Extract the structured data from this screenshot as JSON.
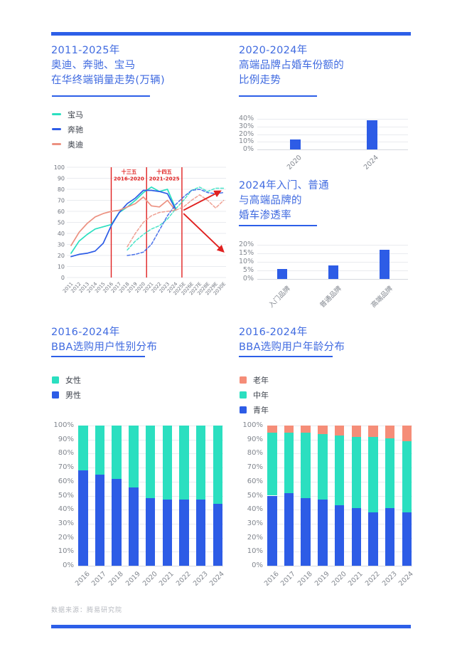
{
  "page": {
    "footer_text": "数据来源：腾易研究院",
    "accent_color": "#2D5FE8",
    "title_color": "#3F6AE0",
    "annotation_color": "#E02120",
    "axis_text_color": "#82878F",
    "grid_color": "#E9EBEF"
  },
  "chart_data": [
    {
      "id": "bba-sales-trend",
      "type": "line",
      "title_lines": [
        "2011-2025年",
        "奥迪、奔驰、宝马",
        "在华终端销量走势(万辆)"
      ],
      "title": "2011-2025年奥迪、奔驰、宝马在华终端销量走势(万辆)",
      "xlabel": "",
      "ylabel": "",
      "x_labels": [
        "2011",
        "2012",
        "2013",
        "2014",
        "2015",
        "2016",
        "2017",
        "2018",
        "2019",
        "2020",
        "2021",
        "2022",
        "2023",
        "2024",
        "2025E",
        "2026E",
        "2027E",
        "2028E",
        "2029E",
        "2030E"
      ],
      "ylim": [
        0,
        100
      ],
      "ytick_step": 10,
      "grid": true,
      "legend_position": "top-left",
      "legend": [
        {
          "label": "宝马",
          "color": "#2BDFC0"
        },
        {
          "label": "奔驰",
          "color": "#2D5CE6"
        },
        {
          "label": "奥迪",
          "color": "#EC9181"
        }
      ],
      "series": [
        {
          "name": "宝马",
          "style": "solid",
          "color": "#2BDFC0",
          "start_index": 0,
          "values": [
            22,
            33,
            39,
            44,
            46,
            48,
            59,
            64,
            70,
            77,
            82,
            78,
            80,
            63
          ]
        },
        {
          "name": "奔驰",
          "style": "solid",
          "color": "#2D5CE6",
          "start_index": 0,
          "values": [
            19,
            21,
            22,
            24,
            31,
            47,
            59,
            67,
            72,
            79,
            79,
            78,
            76,
            62
          ]
        },
        {
          "name": "奥迪",
          "style": "solid",
          "color": "#EC9181",
          "start_index": 0,
          "values": [
            29,
            41,
            49,
            55,
            58,
            60,
            61,
            64,
            67,
            73,
            65,
            64,
            70,
            61
          ]
        },
        {
          "name": "宝马",
          "style": "dashed",
          "color": "#2BDFC0",
          "start_index": 7,
          "values": [
            25,
            33,
            39,
            44,
            47,
            53,
            62,
            70,
            79,
            82,
            78,
            81,
            81
          ]
        },
        {
          "name": "奔驰",
          "style": "dashed",
          "color": "#2D5CE6",
          "start_index": 7,
          "values": [
            20,
            21,
            23,
            30,
            43,
            56,
            66,
            73,
            79,
            80,
            77,
            76,
            77
          ]
        },
        {
          "name": "奥迪",
          "style": "dashed",
          "color": "#EC9181",
          "start_index": 7,
          "values": [
            28,
            40,
            50,
            56,
            59,
            60,
            61,
            64,
            70,
            75,
            70,
            63,
            70
          ]
        }
      ],
      "annotations": [
        {
          "lines": [
            "十三五",
            "2016-2020"
          ],
          "x_index": 7.2,
          "color": "#E02120"
        },
        {
          "lines": [
            "十四五",
            "2021-2025"
          ],
          "x_index": 11.6,
          "color": "#E02120"
        }
      ],
      "divider_x_indices": [
        5,
        9.4,
        13.8
      ],
      "arrows": [
        {
          "from": [
            14.0,
            61
          ],
          "to": [
            18.5,
            78
          ]
        },
        {
          "from": [
            14.0,
            58
          ],
          "to": [
            18.9,
            24
          ]
        }
      ]
    },
    {
      "id": "wedding-car-share",
      "type": "bar",
      "title_lines": [
        "2020-2024年",
        "高端品牌占婚车份额的",
        "比例走势"
      ],
      "title": "2020-2024年高端品牌占婚车份额的比例走势",
      "categories": [
        "2020",
        "2024"
      ],
      "values": [
        13,
        38
      ],
      "unit": "%",
      "ylim": [
        0,
        40
      ],
      "yticks": [
        0,
        10,
        20,
        30,
        40
      ],
      "grid": true,
      "bar_color": "#2D5CE6"
    },
    {
      "id": "wedding-car-penetration",
      "type": "bar",
      "title_lines": [
        "2024年入门、普通",
        "与高端品牌的",
        "婚车渗透率"
      ],
      "title": "2024年入门、普通与高端品牌的婚车渗透率",
      "categories": [
        "入门品牌",
        "普通品牌",
        "高端品牌"
      ],
      "values": [
        6,
        8,
        17
      ],
      "unit": "%",
      "ylim": [
        0,
        20
      ],
      "yticks": [
        0,
        5,
        10,
        15,
        20
      ],
      "grid": true,
      "bar_color": "#2D5CE6"
    },
    {
      "id": "bba-gender",
      "type": "bar-stacked-100",
      "title_lines": [
        "2016-2024年",
        "BBA选购用户性别分布"
      ],
      "title": "2016-2024年BBA选购用户性别分布",
      "categories": [
        "2016",
        "2017",
        "2018",
        "2019",
        "2020",
        "2021",
        "2022",
        "2023",
        "2024"
      ],
      "unit": "%",
      "ylim": [
        0,
        100
      ],
      "ytick_step": 10,
      "grid": true,
      "legend": [
        {
          "label": "女性",
          "color": "#2BDFC0"
        },
        {
          "label": "男性",
          "color": "#2D5CE6"
        }
      ],
      "series": [
        {
          "name": "男性",
          "color": "#2D5CE6",
          "values": [
            68,
            65,
            62,
            56,
            48,
            47,
            47,
            47,
            44
          ]
        },
        {
          "name": "女性",
          "color": "#2BDFC0",
          "values": [
            32,
            35,
            38,
            44,
            52,
            53,
            53,
            53,
            56
          ]
        }
      ]
    },
    {
      "id": "bba-age",
      "type": "bar-stacked-100",
      "title_lines": [
        "2016-2024年",
        "BBA选购用户年龄分布"
      ],
      "title": "2016-2024年BBA选购用户年龄分布",
      "categories": [
        "2016",
        "2017",
        "2018",
        "2019",
        "2020",
        "2021",
        "2022",
        "2023",
        "2024"
      ],
      "unit": "%",
      "ylim": [
        0,
        100
      ],
      "ytick_step": 10,
      "grid": true,
      "legend": [
        {
          "label": "老年",
          "color": "#F58D78"
        },
        {
          "label": "中年",
          "color": "#2BDFC0"
        },
        {
          "label": "青年",
          "color": "#2D5CE6"
        }
      ],
      "series": [
        {
          "name": "青年",
          "color": "#2D5CE6",
          "values": [
            50,
            52,
            48,
            47,
            43,
            41,
            38,
            41,
            38
          ]
        },
        {
          "name": "中年",
          "color": "#2BDFC0",
          "values": [
            45,
            43,
            47,
            47,
            50,
            51,
            54,
            50,
            51
          ]
        },
        {
          "name": "老年",
          "color": "#F58D78",
          "values": [
            5,
            5,
            5,
            6,
            7,
            8,
            8,
            9,
            11
          ]
        }
      ]
    }
  ]
}
